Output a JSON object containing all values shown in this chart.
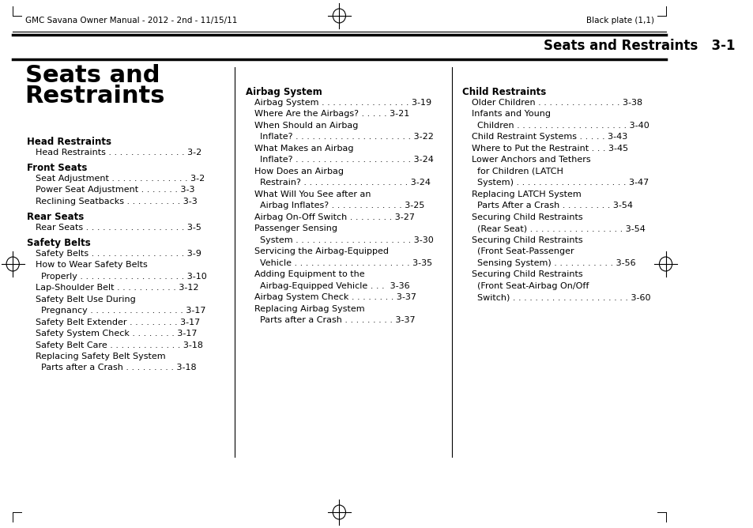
{
  "bg_color": "#ffffff",
  "page_color": "#ffffff",
  "header_left": "GMC Savana Owner Manual - 2012 - 2nd - 11/15/11",
  "header_right": "Black plate (1,1)",
  "section_title": "Seats and Restraints",
  "section_num": "3-1",
  "big_title_line1": "Seats and",
  "big_title_line2": "Restraints",
  "col1_sections": [
    {
      "heading": "Head Restraints",
      "items": [
        [
          "Head Restraints . . . . . . . . . . . . . . 3-2",
          false
        ]
      ]
    },
    {
      "heading": "Front Seats",
      "items": [
        [
          "Seat Adjustment . . . . . . . . . . . . . . 3-2",
          false
        ],
        [
          "Power Seat Adjustment . . . . . . . 3-3",
          false
        ],
        [
          "Reclining Seatbacks . . . . . . . . . . 3-3",
          false
        ]
      ]
    },
    {
      "heading": "Rear Seats",
      "items": [
        [
          "Rear Seats . . . . . . . . . . . . . . . . . . 3-5",
          false
        ]
      ]
    },
    {
      "heading": "Safety Belts",
      "items": [
        [
          "Safety Belts . . . . . . . . . . . . . . . . . 3-9",
          false
        ],
        [
          "How to Wear Safety Belts",
          true
        ],
        [
          "  Properly . . . . . . . . . . . . . . . . . . . 3-10",
          false
        ],
        [
          "Lap-Shoulder Belt . . . . . . . . . . . 3-12",
          false
        ],
        [
          "Safety Belt Use During",
          true
        ],
        [
          "  Pregnancy . . . . . . . . . . . . . . . . . 3-17",
          false
        ],
        [
          "Safety Belt Extender . . . . . . . . . 3-17",
          false
        ],
        [
          "Safety System Check . . . . . . . . 3-17",
          false
        ],
        [
          "Safety Belt Care . . . . . . . . . . . . . 3-18",
          false
        ],
        [
          "Replacing Safety Belt System",
          true
        ],
        [
          "  Parts after a Crash . . . . . . . . . 3-18",
          false
        ]
      ]
    }
  ],
  "col2_heading": "Airbag System",
  "col2_items": [
    [
      "Airbag System . . . . . . . . . . . . . . . . 3-19",
      false
    ],
    [
      "Where Are the Airbags? . . . . . 3-21",
      false
    ],
    [
      "When Should an Airbag",
      true
    ],
    [
      "  Inflate? . . . . . . . . . . . . . . . . . . . . . 3-22",
      false
    ],
    [
      "What Makes an Airbag",
      true
    ],
    [
      "  Inflate? . . . . . . . . . . . . . . . . . . . . . 3-24",
      false
    ],
    [
      "How Does an Airbag",
      true
    ],
    [
      "  Restrain? . . . . . . . . . . . . . . . . . . . 3-24",
      false
    ],
    [
      "What Will You See after an",
      true
    ],
    [
      "  Airbag Inflates? . . . . . . . . . . . . . 3-25",
      false
    ],
    [
      "Airbag On-Off Switch . . . . . . . . 3-27",
      false
    ],
    [
      "Passenger Sensing",
      true
    ],
    [
      "  System . . . . . . . . . . . . . . . . . . . . . 3-30",
      false
    ],
    [
      "Servicing the Airbag-Equipped",
      true
    ],
    [
      "  Vehicle . . . . . . . . . . . . . . . . . . . . . 3-35",
      false
    ],
    [
      "Adding Equipment to the",
      true
    ],
    [
      "  Airbag-Equipped Vehicle . . .  3-36",
      false
    ],
    [
      "Airbag System Check . . . . . . . . 3-37",
      false
    ],
    [
      "Replacing Airbag System",
      true
    ],
    [
      "  Parts after a Crash . . . . . . . . . 3-37",
      false
    ]
  ],
  "col3_heading": "Child Restraints",
  "col3_items": [
    [
      "Older Children . . . . . . . . . . . . . . . 3-38",
      false
    ],
    [
      "Infants and Young",
      true
    ],
    [
      "  Children . . . . . . . . . . . . . . . . . . . . 3-40",
      false
    ],
    [
      "Child Restraint Systems . . . . . 3-43",
      false
    ],
    [
      "Where to Put the Restraint . . . 3-45",
      false
    ],
    [
      "Lower Anchors and Tethers",
      true
    ],
    [
      "  for Children (LATCH",
      true
    ],
    [
      "  System) . . . . . . . . . . . . . . . . . . . . 3-47",
      false
    ],
    [
      "Replacing LATCH System",
      true
    ],
    [
      "  Parts After a Crash . . . . . . . . . 3-54",
      false
    ],
    [
      "Securing Child Restraints",
      true
    ],
    [
      "  (Rear Seat) . . . . . . . . . . . . . . . . . 3-54",
      false
    ],
    [
      "Securing Child Restraints",
      true
    ],
    [
      "  (Front Seat-Passenger",
      true
    ],
    [
      "  Sensing System) . . . . . . . . . . . 3-56",
      false
    ],
    [
      "Securing Child Restraints",
      true
    ],
    [
      "  (Front Seat-Airbag On/Off",
      true
    ],
    [
      "  Switch) . . . . . . . . . . . . . . . . . . . . . 3-60",
      false
    ]
  ]
}
